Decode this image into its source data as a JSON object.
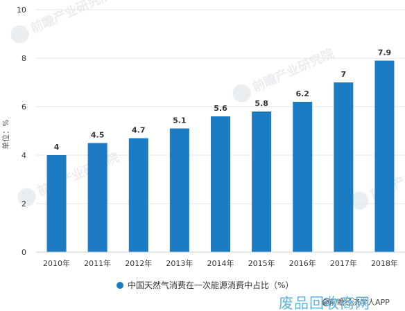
{
  "chart_data": {
    "type": "bar",
    "categories": [
      "2010年",
      "2011年",
      "2012年",
      "2013年",
      "2014年",
      "2015年",
      "2016年",
      "2017年",
      "2018年"
    ],
    "series": [
      {
        "name": "中国天然气消费在一次能源消费中占比（%）",
        "values": [
          4,
          4.5,
          4.7,
          5.1,
          5.6,
          5.8,
          6.2,
          7,
          7.9
        ],
        "color": "#1b7cc4"
      }
    ],
    "data_labels": [
      "4",
      "4.5",
      "4.7",
      "5.1",
      "5.6",
      "5.8",
      "6.2",
      "7",
      "7.9"
    ],
    "yticks": [
      "0",
      "2",
      "4",
      "6",
      "8",
      "10"
    ],
    "ylim": [
      0,
      10
    ],
    "ylabel": "单位：%",
    "xlabel": "",
    "title": "",
    "grid": true,
    "legend_position": "bottom"
  },
  "footer": {
    "credit": "@前瞻经济学人APP",
    "brand": "废品回收商网"
  },
  "watermark": {
    "text": "前瞻产业研究院",
    "icon": "qianzhan-logo-icon"
  },
  "colors": {
    "bar": "#1b7cc4",
    "grid": "#e5e5e5",
    "axis": "#cccccc",
    "brand": "#5cb6df"
  }
}
